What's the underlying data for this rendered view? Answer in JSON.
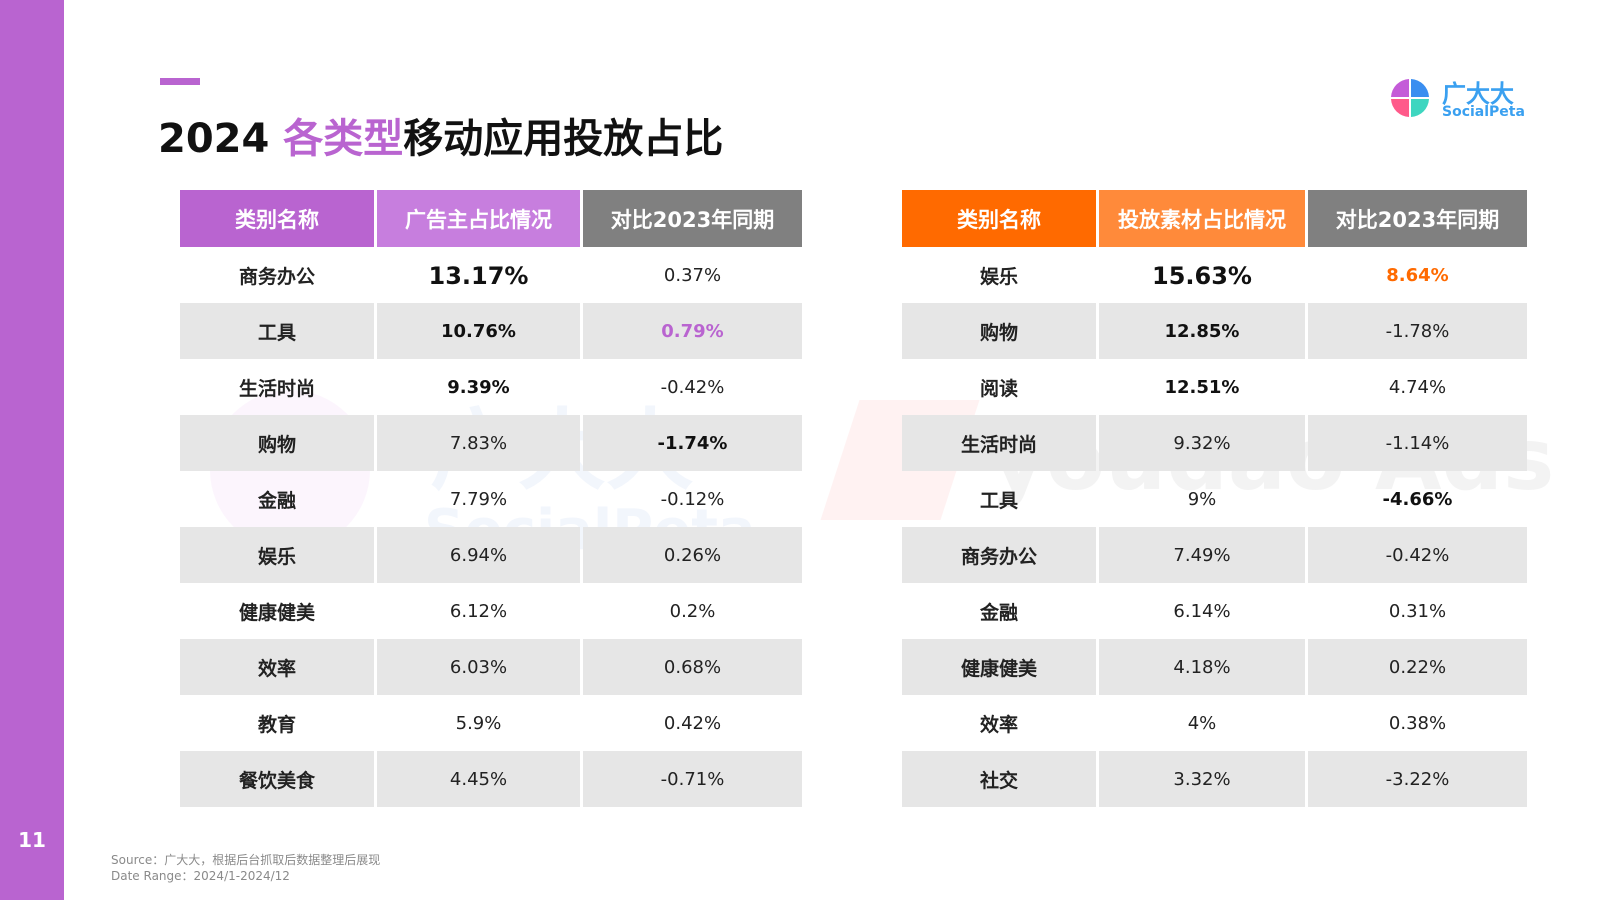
{
  "page_number": "11",
  "title": {
    "year": "2024",
    "highlight": "各类型",
    "rest": "移动应用投放占比"
  },
  "logo": {
    "cn": "广大大",
    "en": "SocialPeta"
  },
  "watermarks": {
    "left_cn": "广大大",
    "left_en": "SocialPeta",
    "right": "youdao Ads"
  },
  "colors": {
    "accent_purple": "#b964d0",
    "header_purple_dark": "#b964d0",
    "header_purple_light": "#c77ede",
    "header_gray": "#808080",
    "header_orange": "#ff6a00",
    "header_orange_light": "#ff8a3a"
  },
  "left_table": {
    "headers": [
      "类别名称",
      "广告主占比情况",
      "对比2023年同期"
    ],
    "rows": [
      [
        "商务办公",
        "13.17%",
        "0.37%"
      ],
      [
        "工具",
        "10.76%",
        "0.79%"
      ],
      [
        "生活时尚",
        "9.39%",
        "-0.42%"
      ],
      [
        "购物",
        "7.83%",
        "-1.74%"
      ],
      [
        "金融",
        "7.79%",
        "-0.12%"
      ],
      [
        "娱乐",
        "6.94%",
        "0.26%"
      ],
      [
        "健康健美",
        "6.12%",
        "0.2%"
      ],
      [
        "效率",
        "6.03%",
        "0.68%"
      ],
      [
        "教育",
        "5.9%",
        "0.42%"
      ],
      [
        "餐饮美食",
        "4.45%",
        "-0.71%"
      ]
    ]
  },
  "right_table": {
    "headers": [
      "类别名称",
      "投放素材占比情况",
      "对比2023年同期"
    ],
    "rows": [
      [
        "娱乐",
        "15.63%",
        "8.64%"
      ],
      [
        "购物",
        "12.85%",
        "-1.78%"
      ],
      [
        "阅读",
        "12.51%",
        "4.74%"
      ],
      [
        "生活时尚",
        "9.32%",
        "-1.14%"
      ],
      [
        "工具",
        "9%",
        "-4.66%"
      ],
      [
        "商务办公",
        "7.49%",
        "-0.42%"
      ],
      [
        "金融",
        "6.14%",
        "0.31%"
      ],
      [
        "健康健美",
        "4.18%",
        "0.22%"
      ],
      [
        "效率",
        "4%",
        "0.38%"
      ],
      [
        "社交",
        "3.32%",
        "-3.22%"
      ]
    ]
  },
  "source": {
    "line1": "Source：广大大，根据后台抓取后数据整理后展现",
    "line2": "Date Range：2024/1-2024/12"
  }
}
